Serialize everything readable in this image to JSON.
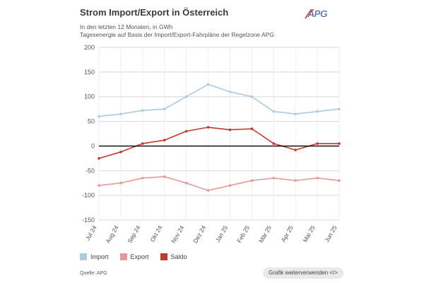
{
  "header": {
    "title": "Strom Import/Export in Österreich",
    "logo_text": "APG",
    "subtitle_line1": "In den letzten 12 Monaten, in GWh",
    "subtitle_line2": "Tagesenergie auf Basis der Import/Export-Fahrpläne der Regelzone APG"
  },
  "legend": {
    "import": "Import",
    "export": "Export",
    "saldo": "Saldo"
  },
  "footer": {
    "source": "Quelle: APG",
    "reuse_button": "Grafik weiterverwenden </>"
  },
  "colors": {
    "import": "#aecbdd",
    "export": "#e49a9a",
    "saldo": "#c0392b",
    "zero_line": "#000000"
  },
  "chart_data": {
    "type": "line",
    "title": "Strom Import/Export in Österreich",
    "xlabel": "",
    "ylabel": "GWh",
    "ylim": [
      -150,
      200
    ],
    "yticks": [
      200,
      150,
      100,
      50,
      0,
      -50,
      -100,
      -150
    ],
    "x_ticks": [
      "Jul 24",
      "Aug 24",
      "Sep 24",
      "Okt 24",
      "Nov 24",
      "Dez 24",
      "Jan 25",
      "Feb 25",
      "Mär 25",
      "Apr 25",
      "Mai 25",
      "Jun 25"
    ],
    "x_points": [
      "Jul 24",
      "Aug 24",
      "Sep 24",
      "Okt 24",
      "Nov 24",
      "Dez 24",
      "Jan 25",
      "Feb 25",
      "Mär 25",
      "Apr 25",
      "Mai 25",
      "Jun 25"
    ],
    "series": [
      {
        "name": "Import",
        "values": [
          60,
          65,
          72,
          75,
          100,
          125,
          110,
          100,
          70,
          65,
          70,
          75
        ]
      },
      {
        "name": "Export",
        "values": [
          -80,
          -75,
          -65,
          -62,
          -75,
          -90,
          -80,
          -70,
          -65,
          -70,
          -65,
          -70
        ]
      },
      {
        "name": "Saldo",
        "values": [
          -25,
          -12,
          5,
          12,
          30,
          38,
          33,
          35,
          5,
          -8,
          5,
          5
        ]
      }
    ]
  }
}
